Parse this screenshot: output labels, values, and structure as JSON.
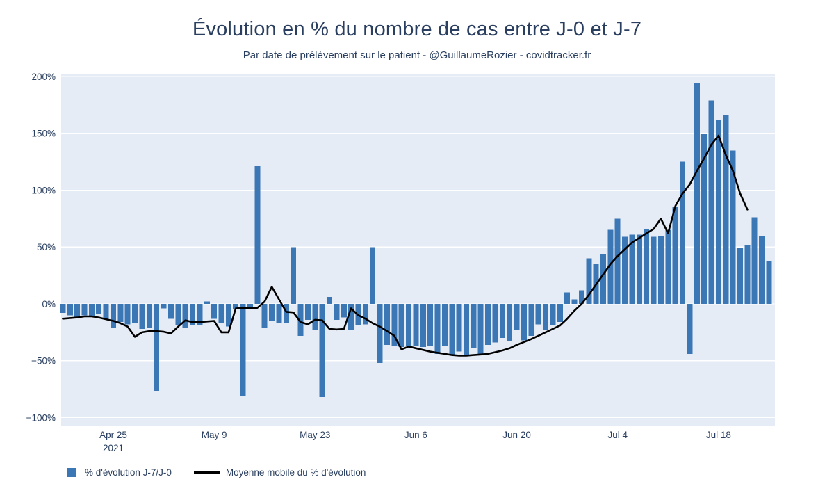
{
  "title": "Évolution en % du nombre de cas entre J-0 et J-7",
  "subtitle": "Par date de prélèvement sur le patient - @GuillaumeRozier - covidtracker.fr",
  "legend": {
    "bar_label": "% d'évolution J-7/J-0",
    "line_label": "Moyenne mobile du % d'évolution"
  },
  "colors": {
    "bar": "#3c77b5",
    "line": "#000000",
    "plot_bg": "#e6ecf5",
    "grid": "#ffffff",
    "text": "#2a3f5f",
    "page_bg": "#ffffff"
  },
  "chart_data": {
    "type": "bar",
    "title": "Évolution en % du nombre de cas entre J-0 et J-7",
    "subtitle": "Par date de prélèvement sur le patient - @GuillaumeRozier - covidtracker.fr",
    "xlabel": "",
    "ylabel": "",
    "ylim": [
      -107,
      203
    ],
    "grid": "white horizontal gridlines on light blue panel",
    "legend_position": "bottom-left",
    "x": [
      "2021-04-18",
      "2021-04-19",
      "2021-04-20",
      "2021-04-21",
      "2021-04-22",
      "2021-04-23",
      "2021-04-24",
      "2021-04-25",
      "2021-04-26",
      "2021-04-27",
      "2021-04-28",
      "2021-04-29",
      "2021-04-30",
      "2021-05-01",
      "2021-05-02",
      "2021-05-03",
      "2021-05-04",
      "2021-05-05",
      "2021-05-06",
      "2021-05-07",
      "2021-05-08",
      "2021-05-09",
      "2021-05-10",
      "2021-05-11",
      "2021-05-12",
      "2021-05-13",
      "2021-05-14",
      "2021-05-15",
      "2021-05-16",
      "2021-05-17",
      "2021-05-18",
      "2021-05-19",
      "2021-05-20",
      "2021-05-21",
      "2021-05-22",
      "2021-05-23",
      "2021-05-24",
      "2021-05-25",
      "2021-05-26",
      "2021-05-27",
      "2021-05-28",
      "2021-05-29",
      "2021-05-30",
      "2021-05-31",
      "2021-06-01",
      "2021-06-02",
      "2021-06-03",
      "2021-06-04",
      "2021-06-05",
      "2021-06-06",
      "2021-06-07",
      "2021-06-08",
      "2021-06-09",
      "2021-06-10",
      "2021-06-11",
      "2021-06-12",
      "2021-06-13",
      "2021-06-14",
      "2021-06-15",
      "2021-06-16",
      "2021-06-17",
      "2021-06-18",
      "2021-06-19",
      "2021-06-20",
      "2021-06-21",
      "2021-06-22",
      "2021-06-23",
      "2021-06-24",
      "2021-06-25",
      "2021-06-26",
      "2021-06-27",
      "2021-06-28",
      "2021-06-29",
      "2021-06-30",
      "2021-07-01",
      "2021-07-02",
      "2021-07-03",
      "2021-07-04",
      "2021-07-05",
      "2021-07-06",
      "2021-07-07",
      "2021-07-08",
      "2021-07-09",
      "2021-07-10",
      "2021-07-11",
      "2021-07-12",
      "2021-07-13",
      "2021-07-14",
      "2021-07-15",
      "2021-07-16",
      "2021-07-17",
      "2021-07-18",
      "2021-07-19",
      "2021-07-20",
      "2021-07-21",
      "2021-07-22",
      "2021-07-23",
      "2021-07-24",
      "2021-07-25"
    ],
    "series": [
      {
        "name": "% d'évolution J-7/J-0",
        "render": "bar",
        "unit": "%",
        "values": [
          -8,
          -10,
          -12,
          -10,
          -11,
          -9,
          -13,
          -21,
          -16,
          -18,
          -17,
          -22,
          -21,
          -77,
          -4,
          -13,
          -19,
          -21,
          -19,
          -19,
          2,
          -13,
          -17,
          -20,
          -5,
          -81,
          -4,
          121,
          -21,
          -15,
          -17,
          -17,
          50,
          -28,
          -14,
          -23,
          -82,
          6,
          -14,
          -12,
          -23,
          -19,
          -18,
          50,
          -52,
          -36,
          -37,
          -38,
          -37,
          -37,
          -38,
          -37,
          -44,
          -37,
          -45,
          -42,
          -45,
          -39,
          -45,
          -36,
          -34,
          -30,
          -33,
          -23,
          -32,
          -28,
          -18,
          -23,
          -19,
          -16,
          10,
          4,
          12,
          40,
          35,
          44,
          65,
          75,
          59,
          61,
          61,
          66,
          59,
          60,
          65,
          85,
          125,
          -44,
          194,
          150,
          179,
          162,
          166,
          135,
          49,
          52,
          76,
          60,
          38
        ]
      },
      {
        "name": "Moyenne mobile du % d'évolution",
        "render": "line",
        "unit": "%",
        "values": [
          -13,
          -12.5,
          -12,
          -11,
          -11,
          -12,
          -13.5,
          -15,
          -17,
          -20,
          -29,
          -25,
          -24,
          -24,
          -24.5,
          -26,
          -20,
          -14.5,
          -16,
          -16,
          -15.5,
          -15,
          -25,
          -25,
          -4,
          -3.5,
          -3.5,
          -3.5,
          2,
          15,
          4,
          -7,
          -7.5,
          -16,
          -18,
          -14,
          -14.5,
          -22,
          -22.5,
          -22,
          -4,
          -10,
          -13,
          -17,
          -20,
          -24,
          -28,
          -40,
          -37.5,
          -39,
          -40.5,
          -42,
          -43,
          -44,
          -45,
          -45.5,
          -45.5,
          -45,
          -44.5,
          -44,
          -42.5,
          -41,
          -39,
          -36,
          -33.5,
          -31,
          -28,
          -25,
          -22,
          -19,
          -13,
          -6,
          0,
          8,
          17,
          26,
          35,
          42,
          48,
          54,
          58,
          62,
          66,
          75,
          62,
          86,
          97,
          105,
          117,
          128,
          140,
          148,
          131,
          117,
          97,
          83,
          null,
          null,
          null
        ]
      }
    ],
    "yticks": [
      {
        "value": 200,
        "label": "200%"
      },
      {
        "value": 150,
        "label": "150%"
      },
      {
        "value": 100,
        "label": "100%"
      },
      {
        "value": 50,
        "label": "50%"
      },
      {
        "value": 0,
        "label": "0%"
      },
      {
        "value": -50,
        "label": "−50%"
      },
      {
        "value": -100,
        "label": "−100%"
      }
    ],
    "xticks": [
      {
        "index": 7,
        "label": "Apr 25",
        "sublabel": "2021"
      },
      {
        "index": 21,
        "label": "May 9"
      },
      {
        "index": 35,
        "label": "May 23"
      },
      {
        "index": 49,
        "label": "Jun 6"
      },
      {
        "index": 63,
        "label": "Jun 20"
      },
      {
        "index": 77,
        "label": "Jul 4"
      },
      {
        "index": 91,
        "label": "Jul 18"
      }
    ]
  }
}
